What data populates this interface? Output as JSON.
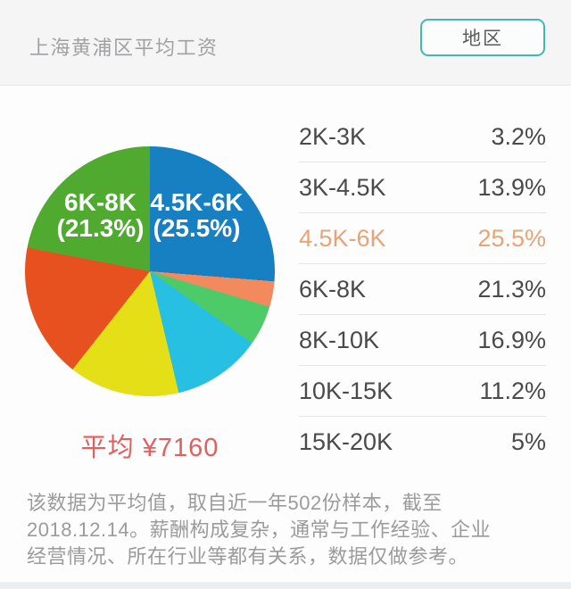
{
  "header": {
    "title": "上海黄浦区平均工资",
    "region_button": "地区"
  },
  "colors": {
    "accent_teal": "#43b8ad",
    "average_red": "#e25f5f",
    "highlight_orange": "#e7a476"
  },
  "chart_data": {
    "type": "pie",
    "title": "上海黄浦区平均工资",
    "unit": "%",
    "slices_clockwise_from_top": [
      {
        "label": "4.5K-6K",
        "value": 25.5,
        "color": "#1780c2"
      },
      {
        "label": "2K-3K",
        "value": 3.2,
        "color": "#f28a5d"
      },
      {
        "label": "15K-20K",
        "value": 5,
        "color": "#4dcb68"
      },
      {
        "label": "10K-15K",
        "value": 11.2,
        "color": "#27bfe2"
      },
      {
        "label": "3K-4.5K",
        "value": 13.9,
        "color": "#e4df17"
      },
      {
        "label": "8K-10K",
        "value": 16.9,
        "color": "#e6511f"
      },
      {
        "label": "6K-8K",
        "value": 21.3,
        "color": "#51aa30"
      }
    ],
    "labels_on_pie": [
      {
        "text": "6K-8K\n(21.3%)"
      },
      {
        "text": "4.5K-6K\n(25.5%)"
      }
    ],
    "average_label": "平均 ¥7160",
    "legend_position": "right-table"
  },
  "table": {
    "rows": [
      {
        "label": "2K-3K",
        "value": "3.2%",
        "highlight": false
      },
      {
        "label": "3K-4.5K",
        "value": "13.9%",
        "highlight": false
      },
      {
        "label": "4.5K-6K",
        "value": "25.5%",
        "highlight": true
      },
      {
        "label": "6K-8K",
        "value": "21.3%",
        "highlight": false
      },
      {
        "label": "8K-10K",
        "value": "16.9%",
        "highlight": false
      },
      {
        "label": "10K-15K",
        "value": "11.2%",
        "highlight": false
      },
      {
        "label": "15K-20K",
        "value": "5%",
        "highlight": false
      }
    ]
  },
  "footer": {
    "lines": [
      "该数据为平均值，取自近一年502份样本，截至",
      "2018.12.14。薪酬构成复杂，通常与工作经验、企业",
      "经营情况、所在行业等都有关系，数据仅做参考。"
    ]
  }
}
